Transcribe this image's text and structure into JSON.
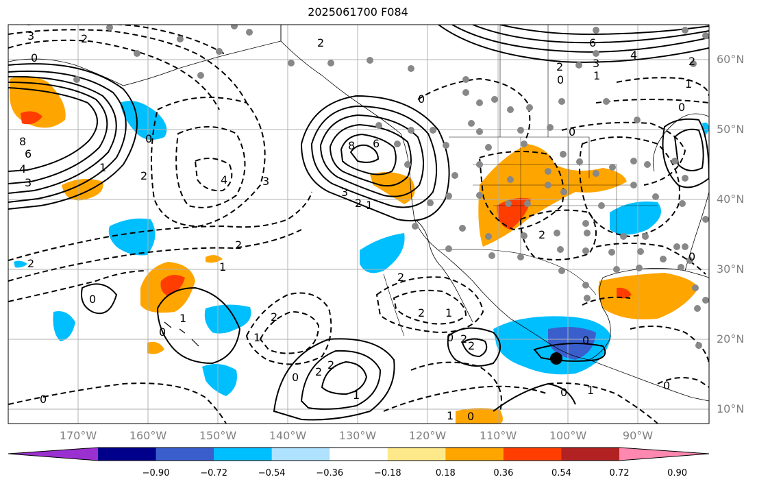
{
  "title": "2025061700 F084",
  "lat_labels": [
    "60°N",
    "50°N",
    "40°N",
    "30°N",
    "20°N",
    "10°N"
  ],
  "lon_labels": [
    "170°W",
    "160°W",
    "150°W",
    "140°W",
    "130°W",
    "120°W",
    "110°W",
    "100°W",
    "90°W"
  ],
  "colorbar": {
    "colors": [
      "#9b30d0",
      "#00008b",
      "#3a5fcd",
      "#00bfff",
      "#aee2ff",
      "#ffffff",
      "#fde98a",
      "#ffa500",
      "#ff3d00",
      "#b22222",
      "#ff88b0"
    ],
    "tick_labels": [
      "−0.90",
      "−0.72",
      "−0.54",
      "−0.36",
      "−0.18",
      "0.18",
      "0.36",
      "0.54",
      "0.72",
      "0.90"
    ]
  },
  "contour_labels": [
    {
      "text": "3"
    },
    {
      "text": "0"
    },
    {
      "text": "8"
    },
    {
      "text": "6"
    },
    {
      "text": "4"
    },
    {
      "text": "3"
    },
    {
      "text": "1"
    },
    {
      "text": "2"
    },
    {
      "text": "0"
    },
    {
      "text": "2"
    },
    {
      "text": "4"
    },
    {
      "text": "3"
    },
    {
      "text": "2"
    },
    {
      "text": "1"
    },
    {
      "text": "8"
    },
    {
      "text": "6"
    },
    {
      "text": "3"
    },
    {
      "text": "2"
    },
    {
      "text": "1"
    },
    {
      "text": "0"
    },
    {
      "text": "2"
    },
    {
      "text": "6"
    },
    {
      "text": "3"
    },
    {
      "text": "4"
    },
    {
      "text": "2"
    },
    {
      "text": "0"
    },
    {
      "text": "1"
    },
    {
      "text": "0"
    },
    {
      "text": "0"
    },
    {
      "text": "2"
    },
    {
      "text": "1"
    },
    {
      "text": "2"
    },
    {
      "text": "2"
    },
    {
      "text": "2"
    },
    {
      "text": "1"
    },
    {
      "text": "2"
    },
    {
      "text": "1"
    },
    {
      "text": "2"
    },
    {
      "text": "0"
    },
    {
      "text": "2"
    },
    {
      "text": "2"
    },
    {
      "text": "0"
    },
    {
      "text": "0"
    },
    {
      "text": "1"
    },
    {
      "text": "0"
    },
    {
      "text": "1"
    },
    {
      "text": "0"
    },
    {
      "text": "0"
    },
    {
      "text": "2"
    },
    {
      "text": "2"
    },
    {
      "text": "0"
    },
    {
      "text": "1"
    },
    {
      "text": "0"
    },
    {
      "text": "1"
    },
    {
      "text": "0"
    },
    {
      "text": "0"
    }
  ]
}
